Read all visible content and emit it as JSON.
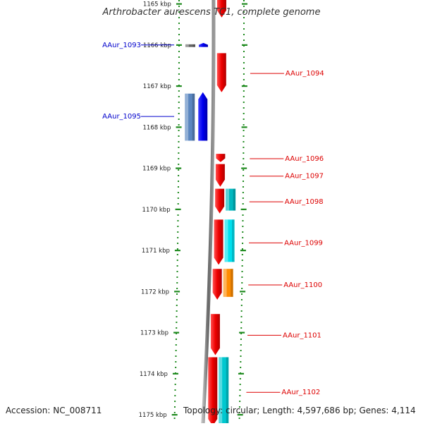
{
  "title": "Arthrobacter aurescens TC1, complete genome",
  "footer": {
    "accession": "Accession: NC_008711",
    "topology": "Topology: circular; Length: 4,597,686 bp; Genes: 4,114"
  },
  "colors": {
    "backbone": "#8a8a8a",
    "axis_dots": "#1e8a1e",
    "forward_label": "#0000cc",
    "reverse_label": "#dd0000"
  },
  "scale": {
    "unit": "kbp",
    "ticks": [
      {
        "kbp": 1165,
        "label": "1165 kbp"
      },
      {
        "kbp": 1166,
        "label": "1166 kbp"
      },
      {
        "kbp": 1167,
        "label": "1167 kbp"
      },
      {
        "kbp": 1168,
        "label": "1168 kbp"
      },
      {
        "kbp": 1169,
        "label": "1169 kbp"
      },
      {
        "kbp": 1170,
        "label": "1170 kbp"
      },
      {
        "kbp": 1171,
        "label": "1171 kbp"
      },
      {
        "kbp": 1172,
        "label": "1172 kbp"
      },
      {
        "kbp": 1173,
        "label": "1173 kbp"
      },
      {
        "kbp": 1174,
        "label": "1174 kbp"
      },
      {
        "kbp": 1175,
        "label": "1175 kbp"
      }
    ]
  },
  "genes": [
    {
      "name": "AAur_1093",
      "strand": "forward",
      "start": 1165.95,
      "end": 1166.05,
      "color": "#0000ee",
      "cog_color": "#666666",
      "labelled": true
    },
    {
      "name": "",
      "strand": "reverse",
      "start": 1164.9,
      "end": 1165.33,
      "color": "#ee0000",
      "labelled": false
    },
    {
      "name": "AAur_1094",
      "strand": "reverse",
      "start": 1166.2,
      "end": 1167.15,
      "color": "#ee0000",
      "labelled": true
    },
    {
      "name": "AAur_1095",
      "strand": "forward",
      "start": 1167.15,
      "end": 1168.33,
      "color": "#0000ee",
      "cog_color": "#5a86c0",
      "labelled": true
    },
    {
      "name": "AAur_1096",
      "strand": "reverse",
      "start": 1168.65,
      "end": 1168.85,
      "color": "#ee0000",
      "labelled": true
    },
    {
      "name": "AAur_1097",
      "strand": "reverse",
      "start": 1168.9,
      "end": 1169.45,
      "color": "#ee0000",
      "labelled": true
    },
    {
      "name": "AAur_1098",
      "strand": "reverse",
      "start": 1169.5,
      "end": 1170.1,
      "color": "#ee0000",
      "cog_color": "#00b8c0",
      "labelled": true
    },
    {
      "name": "AAur_1099",
      "strand": "reverse",
      "start": 1170.25,
      "end": 1171.35,
      "color": "#ee0000",
      "cog_color": "#00e0ee",
      "labelled": true
    },
    {
      "name": "AAur_1100",
      "strand": "reverse",
      "start": 1171.45,
      "end": 1172.2,
      "color": "#ee0000",
      "cog_color": "#ff8c00",
      "labelled": true
    },
    {
      "name": "AAur_1101",
      "strand": "reverse",
      "start": 1172.55,
      "end": 1173.55,
      "color": "#ee0000",
      "labelled": true
    },
    {
      "name": "AAur_1102",
      "strand": "reverse",
      "start": 1173.6,
      "end": 1175.3,
      "color": "#ee0000",
      "cog_color": "#00c8d0",
      "labelled": true
    }
  ]
}
